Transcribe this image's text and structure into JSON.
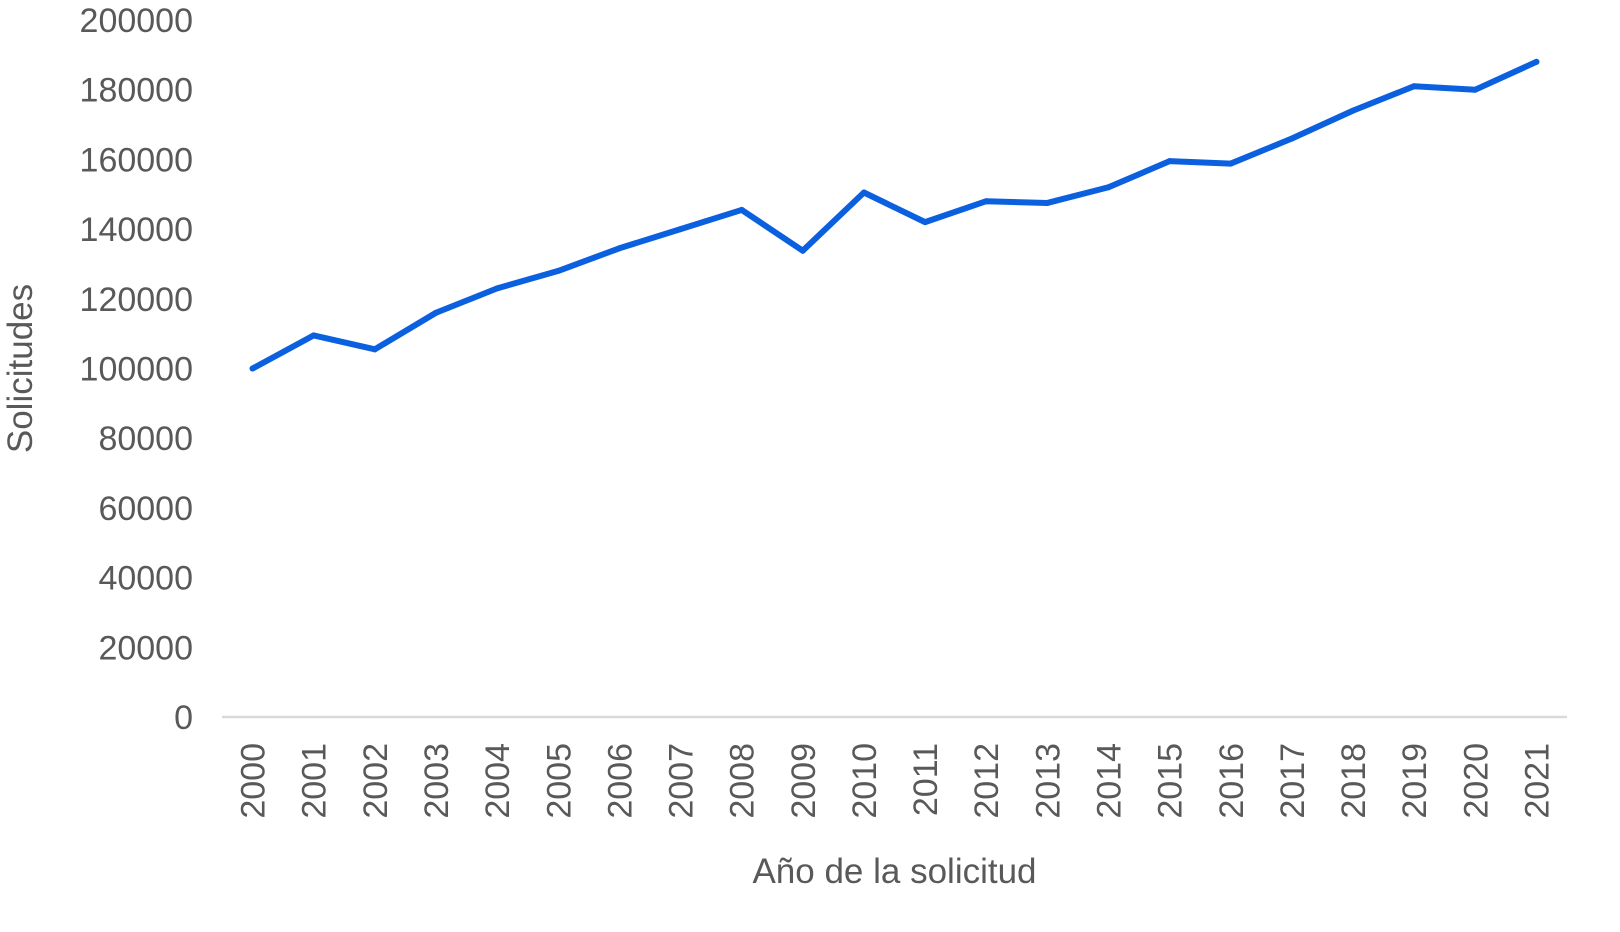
{
  "chart_data": {
    "type": "line",
    "title": "",
    "xlabel": "Año de la solicitud",
    "ylabel": "Solicitudes",
    "categories": [
      "2000",
      "2001",
      "2002",
      "2003",
      "2004",
      "2005",
      "2006",
      "2007",
      "2008",
      "2009",
      "2010",
      "2011",
      "2012",
      "2013",
      "2014",
      "2015",
      "2016",
      "2017",
      "2018",
      "2019",
      "2020",
      "2021"
    ],
    "series": [
      {
        "values": [
          100000,
          109500,
          105500,
          116000,
          123000,
          128000,
          134500,
          140000,
          145500,
          133800,
          150500,
          142000,
          148000,
          147500,
          152000,
          159500,
          158800,
          166000,
          174000,
          181000,
          180000,
          188000
        ]
      }
    ],
    "ylim": [
      0,
      200000
    ],
    "yticks": [
      0,
      20000,
      40000,
      60000,
      80000,
      100000,
      120000,
      140000,
      160000,
      180000,
      200000
    ],
    "ytick_labels": [
      "0",
      "20000",
      "40000",
      "60000",
      "80000",
      "100000",
      "120000",
      "140000",
      "160000",
      "180000",
      "200000"
    ],
    "grid": false,
    "legend": "none",
    "colors": {
      "line": "#0a60df",
      "axis": "#d9d9d9",
      "text": "#595959"
    }
  }
}
